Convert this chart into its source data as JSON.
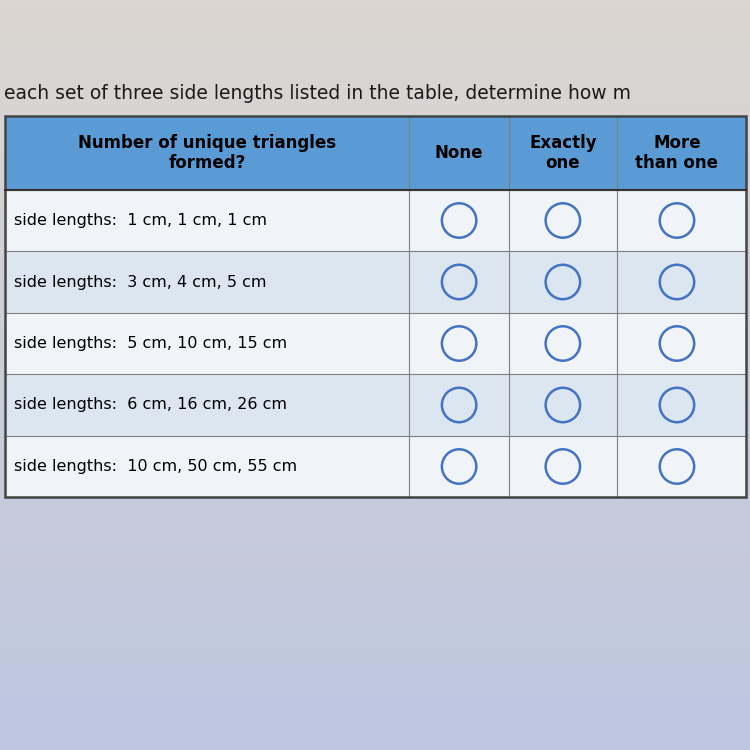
{
  "title_text": "each set of three side lengths listed in the table, determine how m",
  "header_col1": "Number of unique triangles\nformed?",
  "header_col2": "None",
  "header_col3": "Exactly\none",
  "header_col4": "More\nthan one",
  "rows": [
    "side lengths:  1 cm, 1 cm, 1 cm",
    "side lengths:  3 cm, 4 cm, 5 cm",
    "side lengths:  5 cm, 10 cm, 15 cm",
    "side lengths:  6 cm, 16 cm, 26 cm",
    "side lengths:  10 cm, 50 cm, 55 cm"
  ],
  "header_bg": "#5b9bd5",
  "header_text_color": "#000000",
  "row_bg_alt": "#dce6f1",
  "row_bg_white": "#f0f4f8",
  "circle_color": "#4472c4",
  "border_color": "#7f7f7f",
  "title_text_color": "#1a1a1a",
  "title_fontsize": 13.5,
  "header_fontsize": 12,
  "row_fontsize": 11.5,
  "fig_bg_top": "#d8d0c8",
  "fig_bg_bottom": "#b8c8d8",
  "table_bg": "#e8eef4"
}
